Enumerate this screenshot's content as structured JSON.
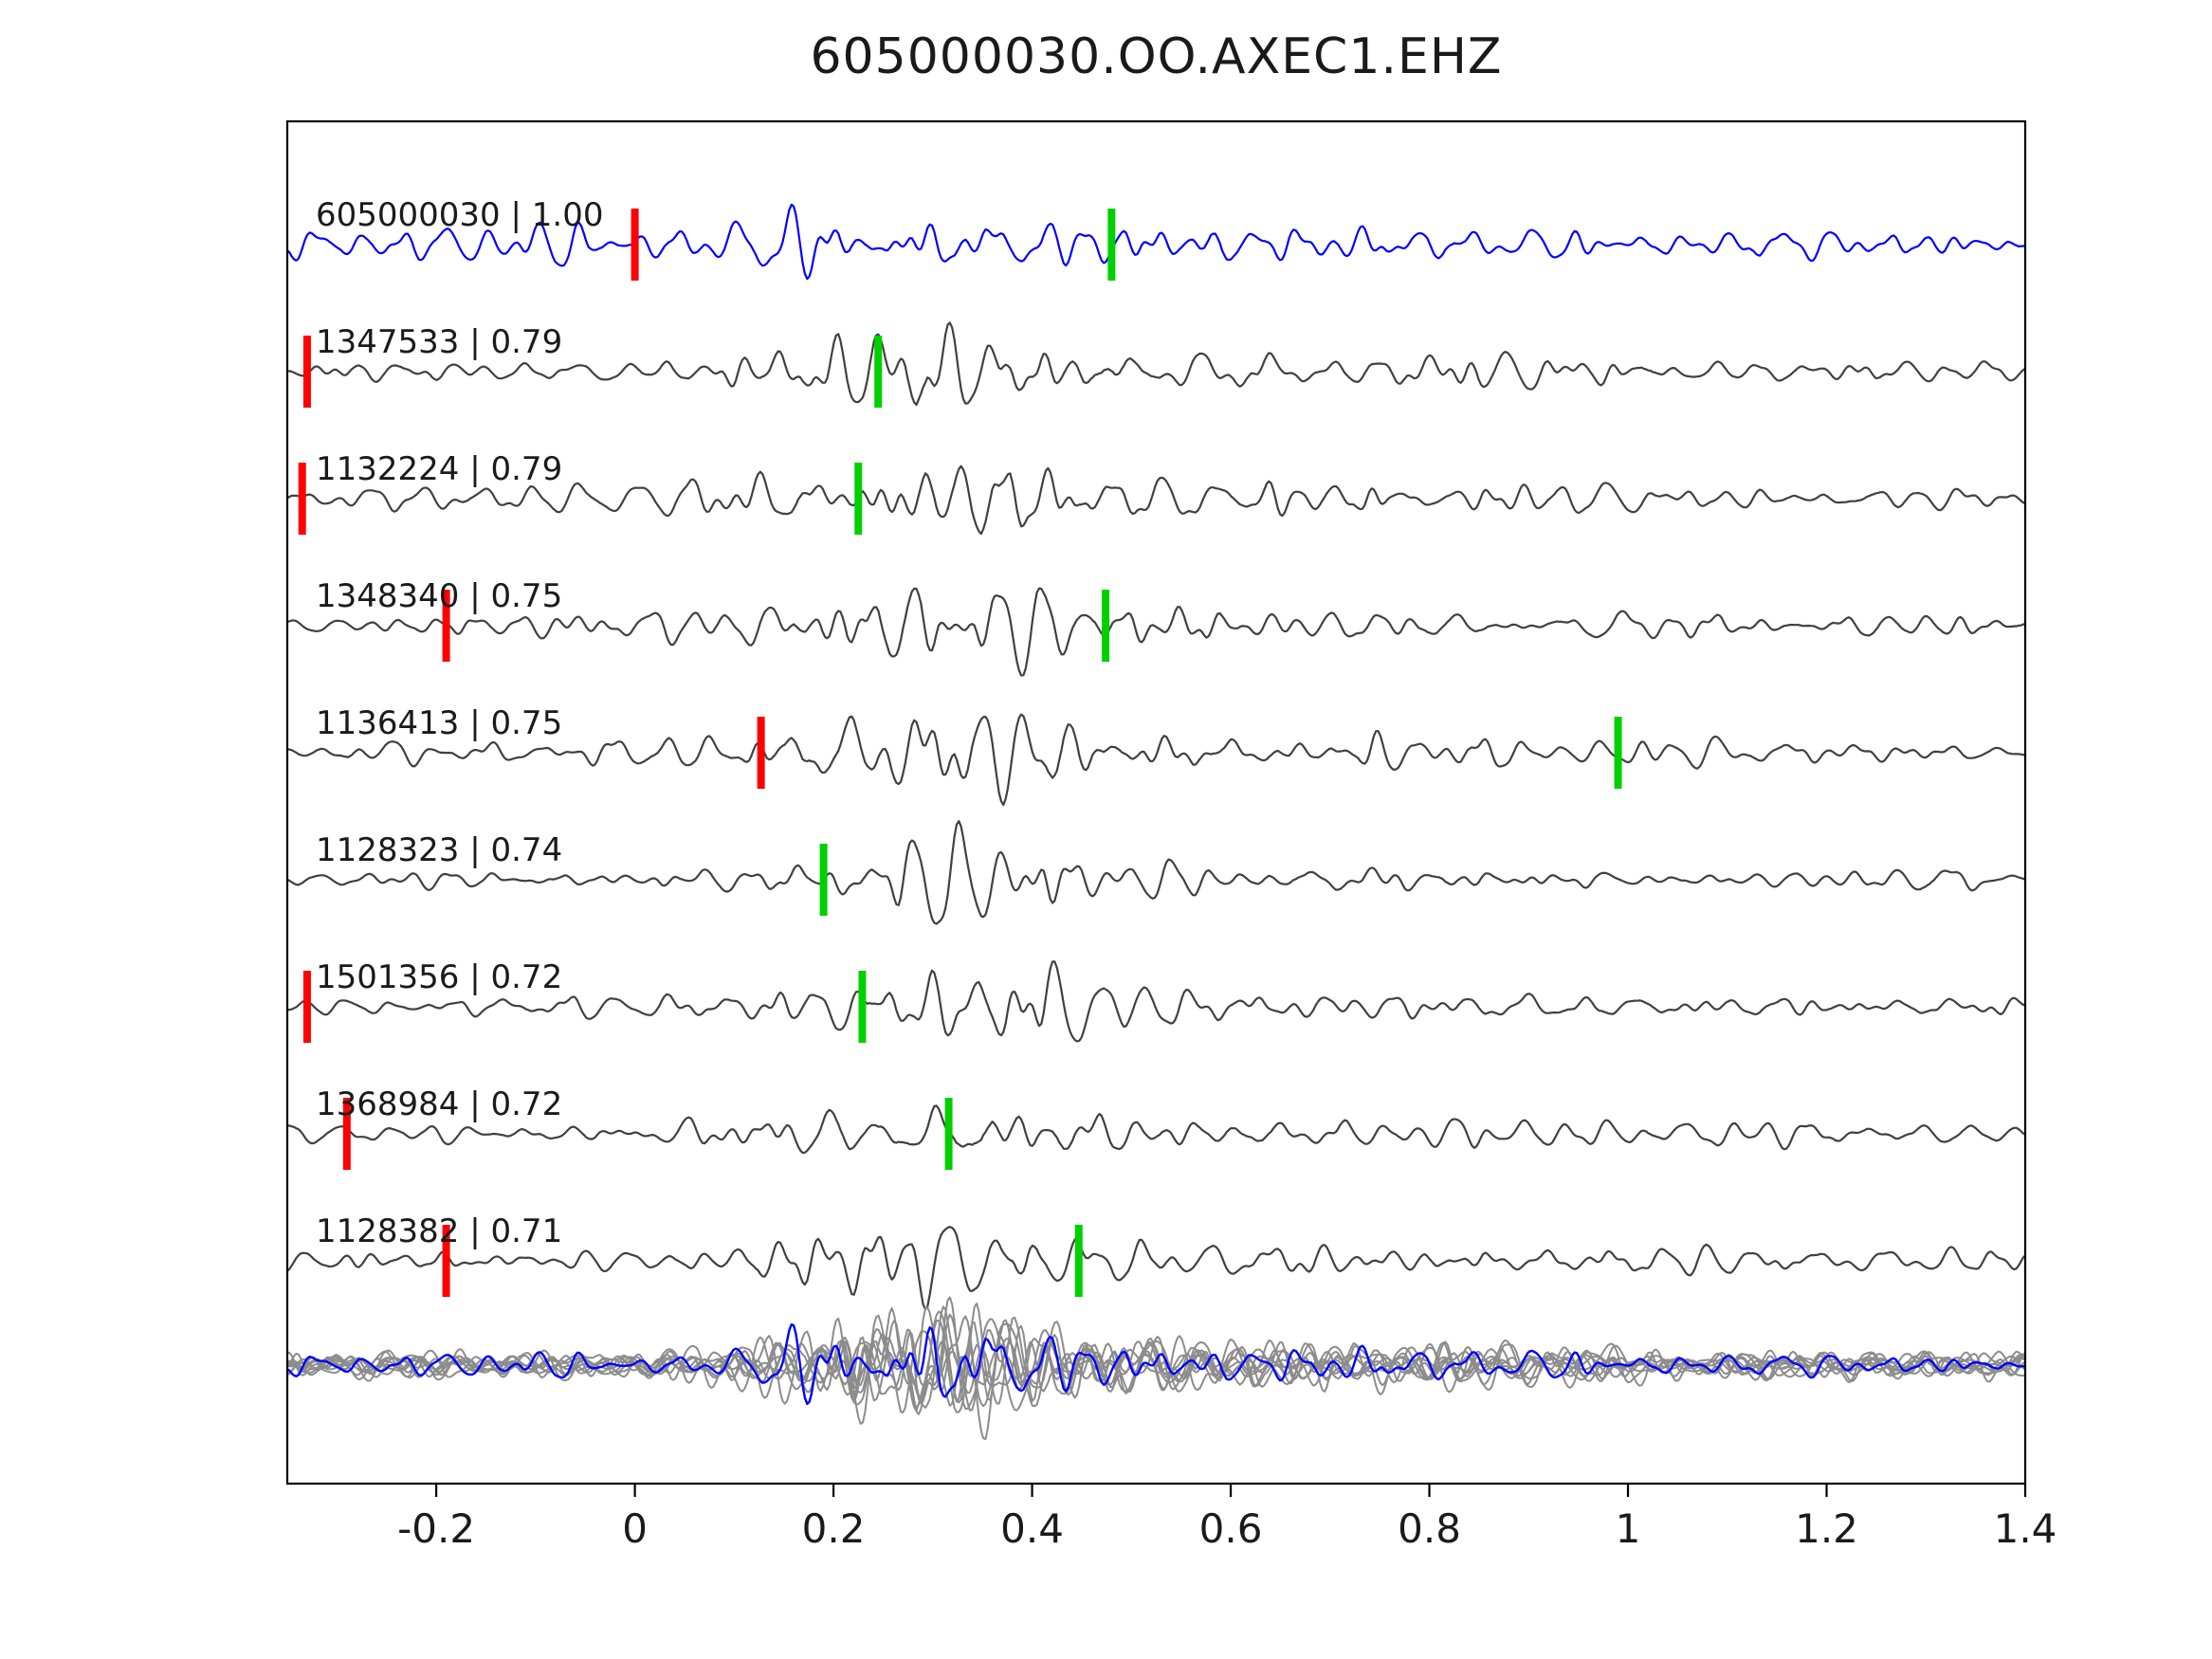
{
  "colors": {
    "template_blue": "#0000ff",
    "detection_gray": "#404040",
    "overlay_gray": "#8c8c8c",
    "pick_red": "#ff0000",
    "pick_green": "#00d000",
    "axis": "#000000",
    "text": "#1a1a1a"
  },
  "chart_data": {
    "type": "line",
    "title": "605000030.OO.AXEC1.EHZ",
    "xlim": [
      -0.35,
      1.4
    ],
    "xticks": [
      -0.2,
      0,
      0.2,
      0.4,
      0.6,
      0.8,
      1,
      1.2,
      1.4
    ],
    "xtick_labels": [
      "-0.2",
      "0",
      "0.2",
      "0.4",
      "0.6",
      "0.8",
      "1",
      "1.2",
      "1.4"
    ],
    "ylabel": "",
    "grid": false,
    "legend": "none",
    "description": "Template waveform (blue, top) compared with correlated detection waveforms (dark gray rows); red and green vertical bars are pick markers; bottom row overlays all detections (gray) with the template (blue).",
    "traces": [
      {
        "id": "605000030",
        "cc": 1.0,
        "label": "605000030 | 1.00",
        "role": "template",
        "picks": [
          {
            "color": "red",
            "x": 0.0
          },
          {
            "color": "green",
            "x": 0.48
          }
        ]
      },
      {
        "id": "1347533",
        "cc": 0.79,
        "label": "1347533 | 0.79",
        "role": "detection",
        "picks": [
          {
            "color": "red",
            "x": -0.33
          },
          {
            "color": "green",
            "x": 0.245
          }
        ]
      },
      {
        "id": "1132224",
        "cc": 0.79,
        "label": "1132224 | 0.79",
        "role": "detection",
        "picks": [
          {
            "color": "red",
            "x": -0.335
          },
          {
            "color": "green",
            "x": 0.225
          }
        ]
      },
      {
        "id": "1348340",
        "cc": 0.75,
        "label": "1348340 | 0.75",
        "role": "detection",
        "picks": [
          {
            "color": "red",
            "x": -0.19
          },
          {
            "color": "green",
            "x": 0.474
          }
        ]
      },
      {
        "id": "1136413",
        "cc": 0.75,
        "label": "1136413 | 0.75",
        "role": "detection",
        "picks": [
          {
            "color": "red",
            "x": 0.127
          },
          {
            "color": "green",
            "x": 0.99
          }
        ]
      },
      {
        "id": "1128323",
        "cc": 0.74,
        "label": "1128323 | 0.74",
        "role": "detection",
        "picks": [
          {
            "color": "green",
            "x": 0.19
          }
        ]
      },
      {
        "id": "1501356",
        "cc": 0.72,
        "label": "1501356 | 0.72",
        "role": "detection",
        "picks": [
          {
            "color": "red",
            "x": -0.33
          },
          {
            "color": "green",
            "x": 0.229
          }
        ]
      },
      {
        "id": "1368984",
        "cc": 0.72,
        "label": "1368984 | 0.72",
        "role": "detection",
        "picks": [
          {
            "color": "red",
            "x": -0.29
          },
          {
            "color": "green",
            "x": 0.316
          }
        ]
      },
      {
        "id": "1128382",
        "cc": 0.71,
        "label": "1128382 | 0.71",
        "role": "detection",
        "picks": [
          {
            "color": "red",
            "x": -0.19
          },
          {
            "color": "green",
            "x": 0.447
          }
        ]
      }
    ],
    "overlay_row": {
      "gray_trace_count": 9,
      "includes_template_blue": true
    }
  }
}
